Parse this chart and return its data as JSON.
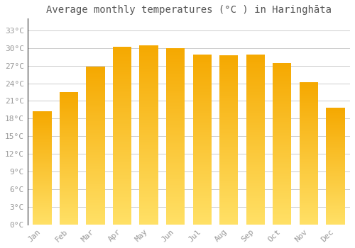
{
  "title": "Average monthly temperatures (°C ) in Haringhāta",
  "months": [
    "Jan",
    "Feb",
    "Mar",
    "Apr",
    "May",
    "Jun",
    "Jul",
    "Aug",
    "Sep",
    "Oct",
    "Nov",
    "Dec"
  ],
  "values": [
    19.2,
    22.5,
    26.8,
    30.2,
    30.5,
    30.0,
    28.9,
    28.8,
    28.9,
    27.5,
    24.2,
    19.8
  ],
  "bar_color_top": "#F5A800",
  "bar_color_bottom": "#FFE066",
  "yticks": [
    0,
    3,
    6,
    9,
    12,
    15,
    18,
    21,
    24,
    27,
    30,
    33
  ],
  "ylim": [
    0,
    35
  ],
  "background_color": "#FFFFFF",
  "grid_color": "#CCCCCC",
  "tick_label_color": "#999999",
  "title_color": "#555555",
  "title_fontsize": 10,
  "tick_fontsize": 8,
  "font_family": "monospace",
  "bar_width": 0.7
}
